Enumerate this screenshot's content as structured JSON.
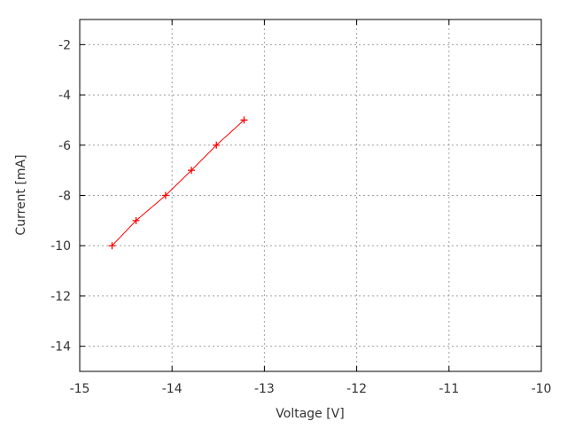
{
  "chart_data": {
    "type": "line",
    "title": "",
    "xlabel": "Voltage [V]",
    "ylabel": "Current [mA]",
    "xlim": [
      -15,
      -10
    ],
    "ylim": [
      -15,
      -1
    ],
    "xticks": [
      -15,
      -14,
      -13,
      -12,
      -11,
      -10
    ],
    "yticks": [
      -2,
      -4,
      -6,
      -8,
      -10,
      -12,
      -14
    ],
    "grid": true,
    "series": [
      {
        "color": "#ff0000",
        "marker": "plus",
        "x": [
          -14.65,
          -14.39,
          -14.07,
          -13.79,
          -13.52,
          -13.22
        ],
        "y": [
          -10,
          -9,
          -8,
          -7,
          -6,
          -5
        ]
      }
    ]
  }
}
